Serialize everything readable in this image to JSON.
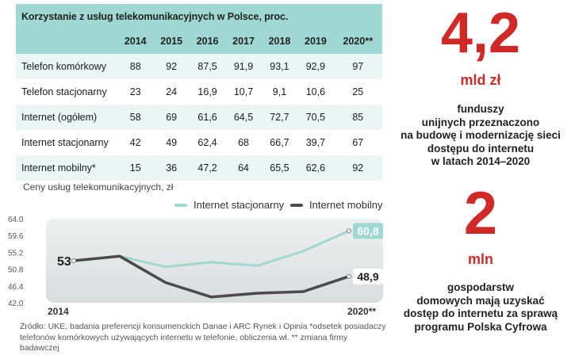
{
  "table": {
    "title": "Korzystanie z usług telekomunikacyjnych w Polsce, proc.",
    "years": [
      "2014",
      "2015",
      "2016",
      "2017",
      "2018",
      "2019",
      "2020**"
    ],
    "rows": [
      {
        "label": "Telefon komórkowy",
        "values": [
          "88",
          "92",
          "87,5",
          "91,9",
          "93,1",
          "92,9",
          "97"
        ]
      },
      {
        "label": "Telefon stacjonarny",
        "values": [
          "23",
          "24",
          "16,9",
          "10,7",
          "9,1",
          "10,6",
          "25"
        ]
      },
      {
        "label": "Internet (ogółem)",
        "values": [
          "58",
          "69",
          "61,6",
          "64,5",
          "72,7",
          "70,5",
          "85"
        ]
      },
      {
        "label": "Internet stacjonarny",
        "values": [
          "42",
          "49",
          "62,4",
          "68",
          "66,7",
          "39,7",
          "67"
        ]
      },
      {
        "label": "Internet mobilny*",
        "values": [
          "15",
          "36",
          "47,2",
          "64",
          "65,5",
          "62,6",
          "92"
        ]
      }
    ]
  },
  "chart_data": {
    "type": "line",
    "title": "Ceny usług telekomunikacyjnych, zł",
    "x": [
      "2014",
      "2015",
      "2016",
      "2017",
      "2018",
      "2019",
      "2020**"
    ],
    "x_tick_labels": [
      "2014",
      "2020**"
    ],
    "y_ticks": [
      "64.0",
      "59.6",
      "55.2",
      "50.8",
      "46.4",
      "42.0"
    ],
    "ylim": [
      42.0,
      64.0
    ],
    "series": [
      {
        "name": "Internet stacjonarny",
        "color": "#9fd8d2",
        "values": [
          53,
          54.2,
          51.4,
          52.6,
          51.7,
          55.5,
          60.8
        ]
      },
      {
        "name": "Internet mobilny",
        "color": "#4a4a4a",
        "values": [
          53,
          54.2,
          47.3,
          43.5,
          44.5,
          44.9,
          48.9
        ]
      }
    ],
    "labels": {
      "start": "53",
      "end_stacjonarny": "60,8",
      "end_mobilny": "48,9"
    },
    "grid": false,
    "legend_position": "top"
  },
  "footnote": "Źródło: UKE, badania preferencji konsumenckich Danae i ARC Rynek i Opinia *odsetek posiadaczy telefonów komórkowych używających internetu w telefonie, obliczenia wł.  ** zmiana firmy badawczej",
  "highlights": [
    {
      "number": "4,2",
      "unit": "mld zł",
      "lines": [
        "funduszy",
        "unijnych przeznaczono",
        "na budowę i modernizację sieci",
        "dostępu do internetu",
        "w latach 2014–2020"
      ]
    },
    {
      "number": "2",
      "unit": "mln",
      "lines": [
        "gospodarstw",
        "domowych mają uzyskać",
        "dostęp do internetu za sprawą",
        "programu Polska Cyfrowa"
      ]
    }
  ],
  "colors": {
    "accent": "#cf2a27",
    "teal": "#9fd8d2",
    "dark": "#4a4a4a"
  }
}
